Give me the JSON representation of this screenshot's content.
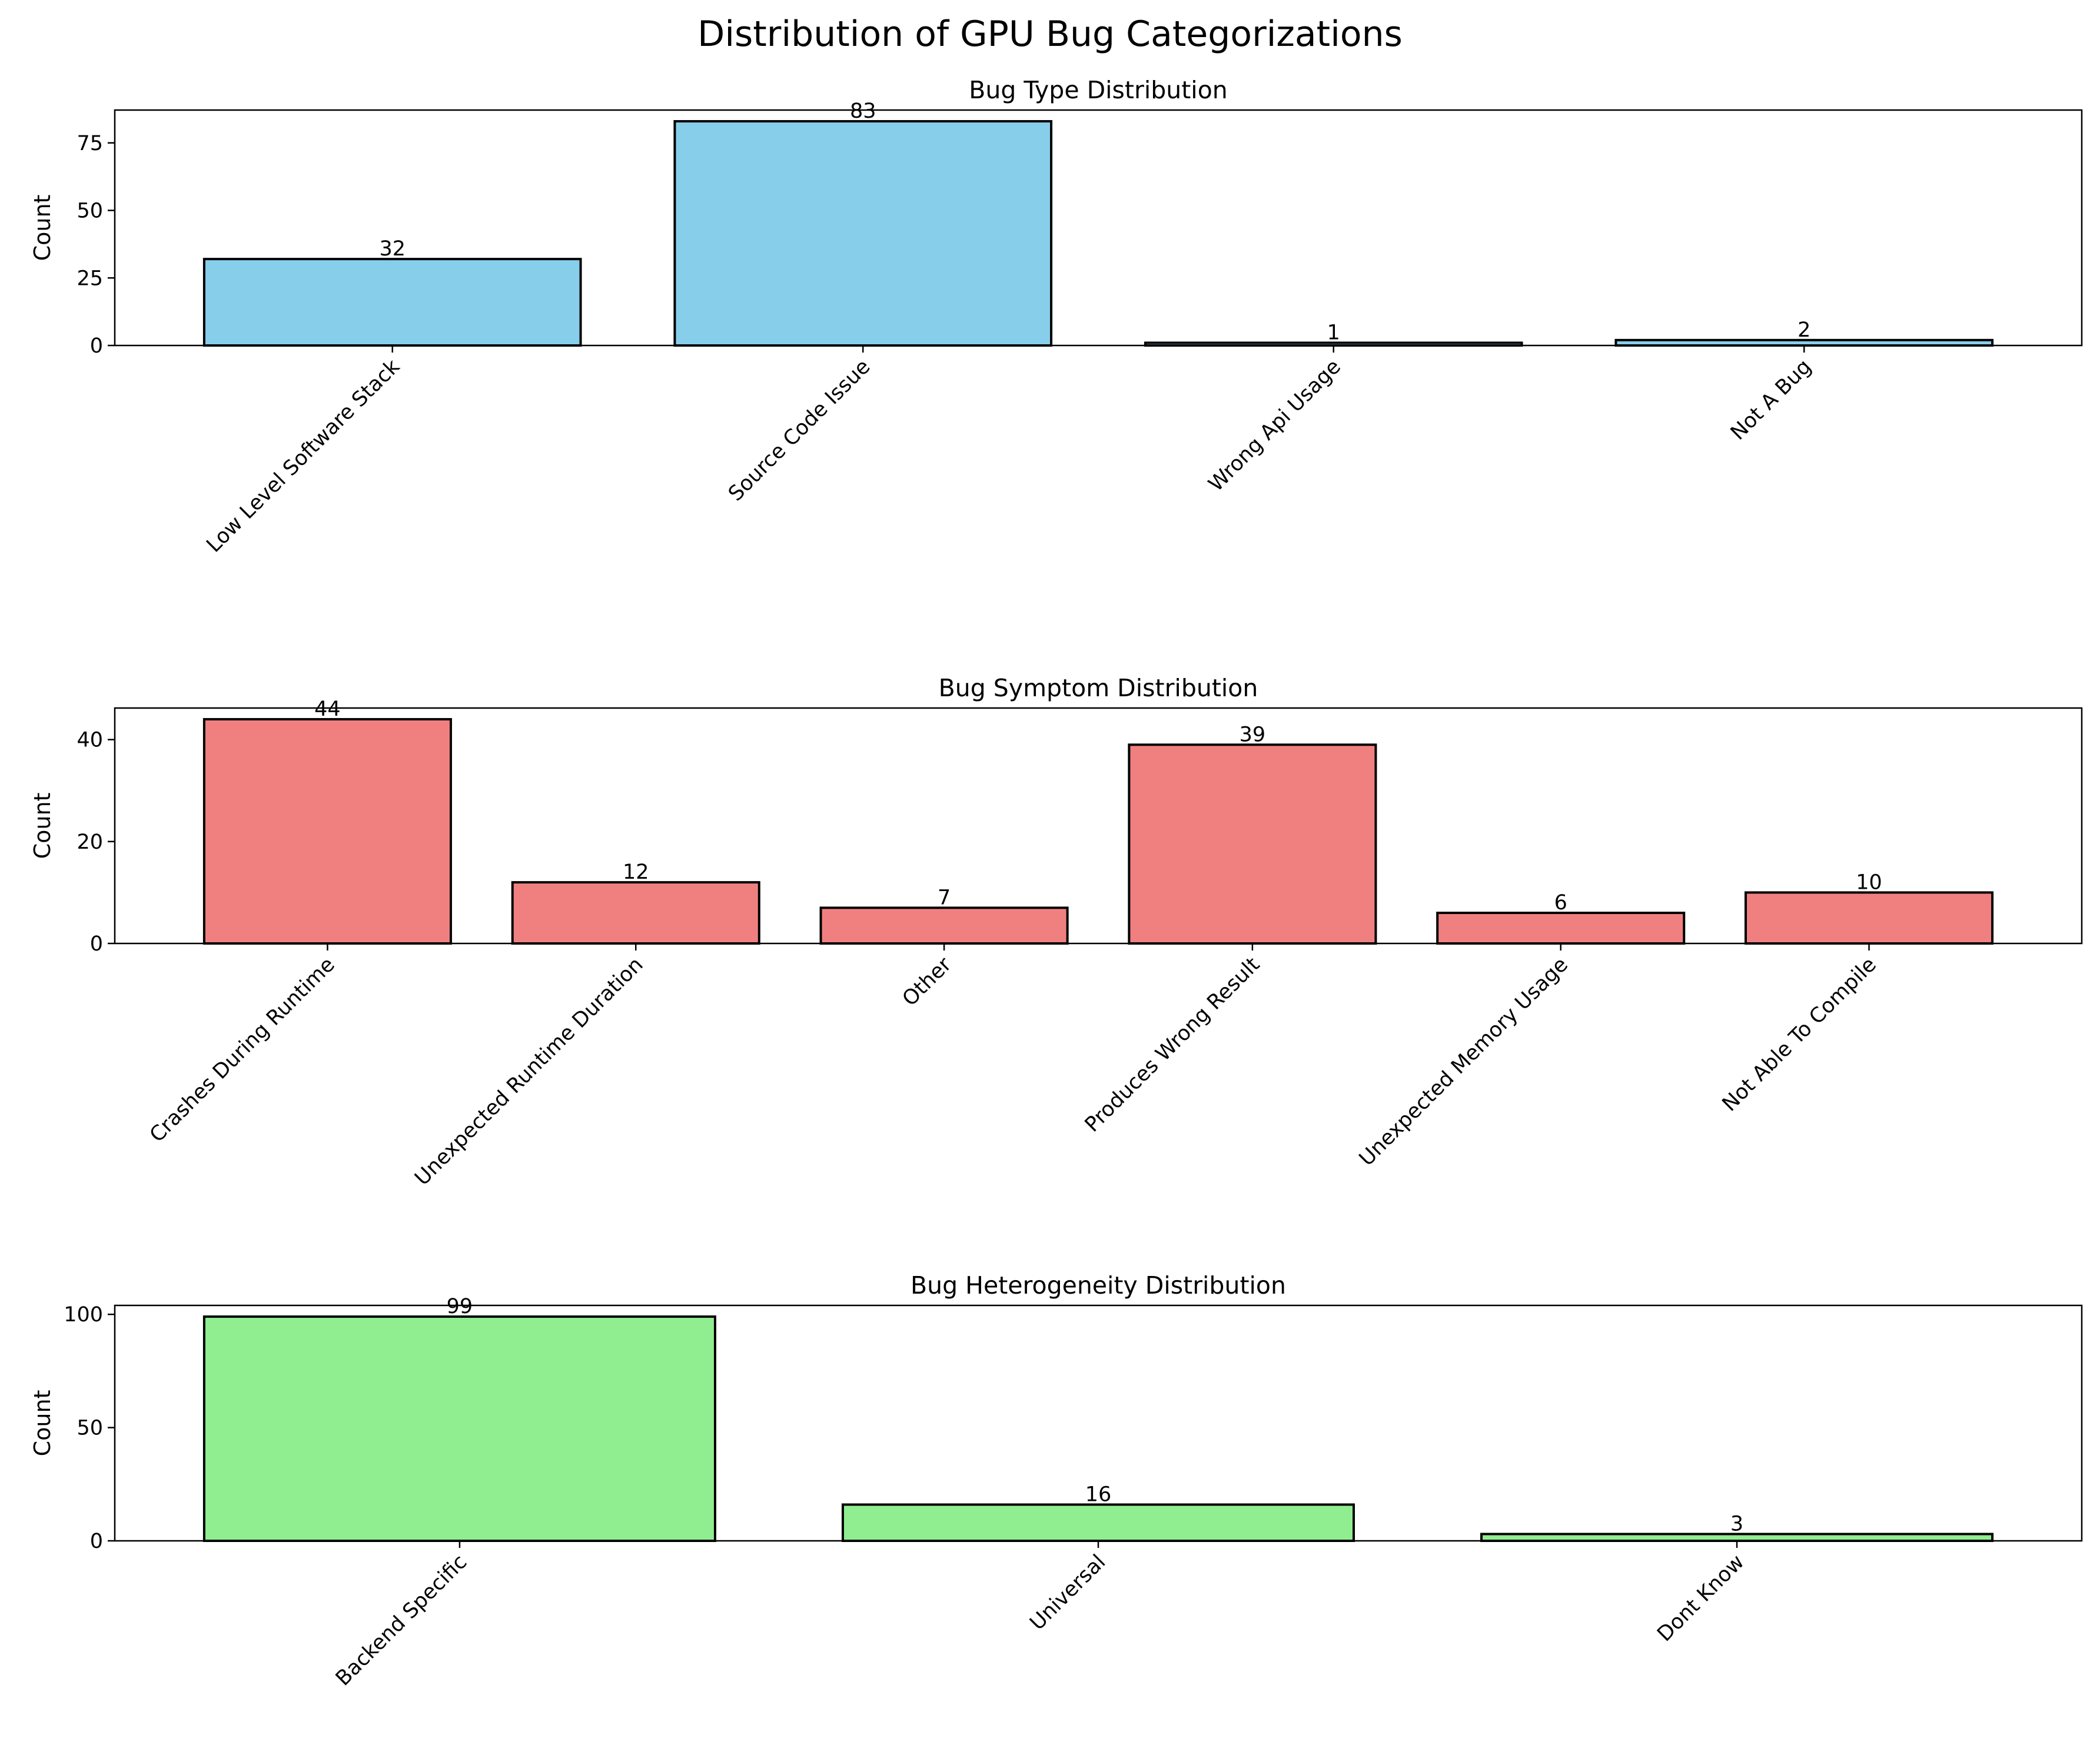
{
  "figure_title": "Distribution of GPU Bug Categorizations",
  "chart_data": [
    {
      "type": "bar",
      "title": "Bug Type Distribution",
      "xlabel": "",
      "ylabel": "Count",
      "categories": [
        "Low Level Software Stack",
        "Source Code Issue",
        "Wrong Api Usage",
        "Not A Bug"
      ],
      "values": [
        32,
        83,
        1,
        2
      ],
      "ylim": [
        0,
        87.15
      ],
      "yticks": [
        0,
        25,
        50,
        75
      ],
      "color": "#87ceeb",
      "data_labels": true
    },
    {
      "type": "bar",
      "title": "Bug Symptom Distribution",
      "xlabel": "",
      "ylabel": "Count",
      "categories": [
        "Crashes During Runtime",
        "Unexpected Runtime Duration",
        "Other",
        "Produces Wrong Result",
        "Unexpected Memory Usage",
        "Not Able To Compile"
      ],
      "values": [
        44,
        12,
        7,
        39,
        6,
        10
      ],
      "ylim": [
        0,
        46.2
      ],
      "yticks": [
        0,
        20,
        40
      ],
      "color": "#f08080",
      "data_labels": true
    },
    {
      "type": "bar",
      "title": "Bug Heterogeneity Distribution",
      "xlabel": "",
      "ylabel": "Count",
      "categories": [
        "Backend Specific",
        "Universal",
        "Dont Know"
      ],
      "values": [
        99,
        16,
        3
      ],
      "ylim": [
        0,
        103.95
      ],
      "yticks": [
        0,
        50,
        100
      ],
      "color": "#90ee90",
      "data_labels": true
    }
  ]
}
